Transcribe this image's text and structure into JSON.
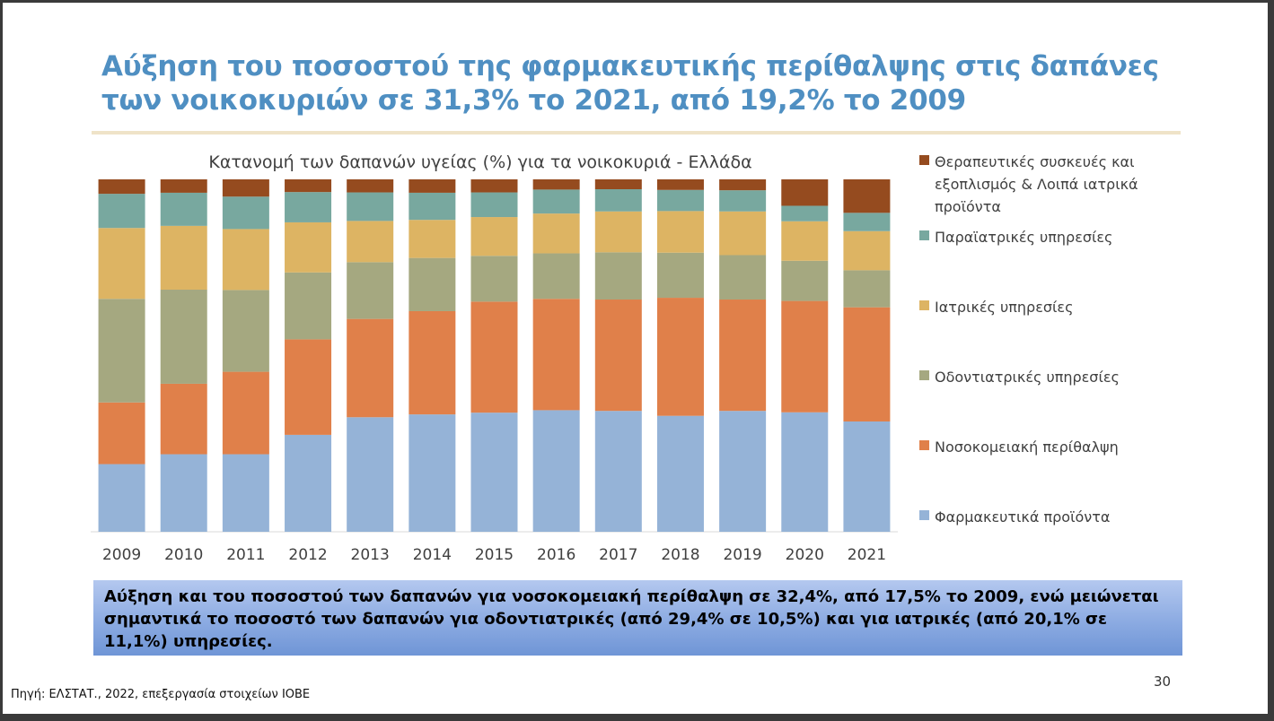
{
  "slide": {
    "title": "Αύξηση του ποσοστού της φαρμακευτικής περίθαλψης στις δαπάνες των νοικοκυριών σε 31,3% το 2021, από 19,2% το 2009",
    "callout": "Αύξηση και του ποσοστού των δαπανών για νοσοκομειακή περίθαλψη σε 32,4%, από 17,5% το 2009, ενώ μειώνεται σημαντικά το ποσοστό των δαπανών για οδοντιατρικές (από 29,4% σε 10,5%) και για ιατρικές (από 20,1% σε 11,1%) υπηρεσίες.",
    "page_number": "30",
    "source": "Πηγή: ΕΛΣΤΑΤ., 2022, επεξεργασία στοιχείων ΙΟΒΕ"
  },
  "chart_data": {
    "type": "bar",
    "stacked": true,
    "percent": true,
    "title": "Κατανομή των δαπανών υγείας (%) για τα νοικοκυριά - Ελλάδα",
    "categories": [
      "2009",
      "2010",
      "2011",
      "2012",
      "2013",
      "2014",
      "2015",
      "2016",
      "2017",
      "2018",
      "2019",
      "2020",
      "2021"
    ],
    "ylim": [
      0,
      100
    ],
    "grid": false,
    "legend_position": "right",
    "series": [
      {
        "name": "Φαρμακευτικά προϊόντα",
        "color": "#95b3d7",
        "values": [
          19.2,
          22.0,
          22.0,
          27.5,
          32.5,
          33.3,
          33.8,
          34.5,
          34.3,
          32.9,
          34.3,
          33.9,
          31.3
        ]
      },
      {
        "name": "Νοσοκομειακή περίθαλψη",
        "color": "#e0804a",
        "values": [
          17.5,
          20.0,
          23.4,
          27.1,
          27.9,
          29.3,
          31.5,
          31.6,
          31.6,
          33.5,
          31.6,
          31.6,
          32.4
        ]
      },
      {
        "name": "Οδοντιατρικές υπηρεσίες",
        "color": "#a5a880",
        "values": [
          29.4,
          26.7,
          23.2,
          19.0,
          16.1,
          15.1,
          13.0,
          12.9,
          13.4,
          12.8,
          12.6,
          11.4,
          10.5
        ]
      },
      {
        "name": "Ιατρικές υπηρεσίες",
        "color": "#ddb463",
        "values": [
          20.1,
          18.1,
          17.3,
          14.2,
          11.7,
          10.8,
          11.0,
          11.3,
          11.6,
          11.8,
          12.4,
          11.2,
          11.1
        ]
      },
      {
        "name": "Παραϊατρικές υπηρεσίες",
        "color": "#78a89f",
        "values": [
          9.7,
          9.4,
          9.2,
          8.6,
          8.1,
          7.7,
          7.0,
          6.8,
          6.3,
          6.0,
          6.0,
          4.4,
          5.2
        ]
      },
      {
        "name": "Θεραπευτικές συσκευές και εξοπλισμός & Λοιπά ιατρικά προϊόντα",
        "color": "#954b1f",
        "values": [
          4.1,
          3.8,
          4.9,
          3.6,
          3.7,
          3.8,
          3.7,
          2.9,
          2.8,
          3.0,
          3.1,
          7.5,
          9.5
        ]
      }
    ]
  }
}
